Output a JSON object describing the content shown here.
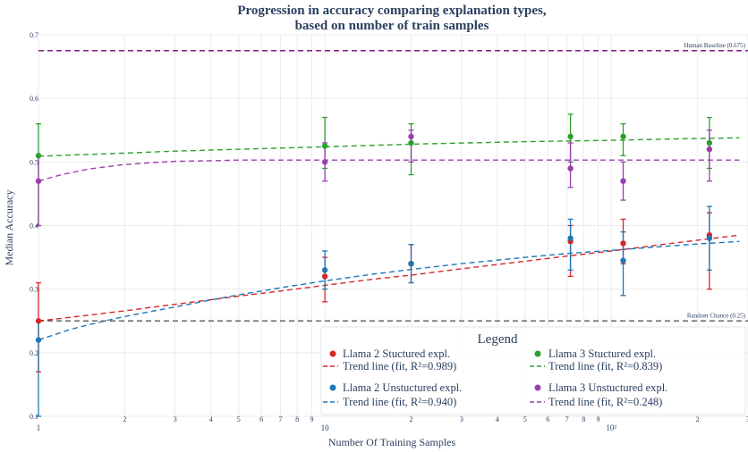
{
  "chart_data": {
    "type": "scatter",
    "title_line1": "Progression in accuracy comparing explanation types,",
    "title_line2": "based on number of train samples",
    "xlabel": "Number Of Training Samples",
    "ylabel": "Median Accuracy",
    "x_scale": "log",
    "xlim": [
      1,
      300
    ],
    "ylim": [
      0.1,
      0.7
    ],
    "x_major_ticks": [
      {
        "value": 1,
        "label": "1"
      },
      {
        "value": 10,
        "label": "10"
      },
      {
        "value": 100,
        "label": "10²"
      }
    ],
    "x_minor_ticks": [
      {
        "value": 2,
        "label": "2"
      },
      {
        "value": 3,
        "label": "3"
      },
      {
        "value": 4,
        "label": "4"
      },
      {
        "value": 5,
        "label": "5"
      },
      {
        "value": 6,
        "label": "6"
      },
      {
        "value": 7,
        "label": "7"
      },
      {
        "value": 8,
        "label": "8"
      },
      {
        "value": 9,
        "label": "9"
      },
      {
        "value": 20,
        "label": "2"
      },
      {
        "value": 30,
        "label": "3"
      },
      {
        "value": 40,
        "label": "4"
      },
      {
        "value": 50,
        "label": "5"
      },
      {
        "value": 60,
        "label": "6"
      },
      {
        "value": 70,
        "label": "7"
      },
      {
        "value": 80,
        "label": "8"
      },
      {
        "value": 90,
        "label": "9"
      },
      {
        "value": 200,
        "label": "2"
      },
      {
        "value": 300,
        "label": "3"
      }
    ],
    "y_ticks": [
      {
        "value": 0.1,
        "label": "0.1"
      },
      {
        "value": 0.2,
        "label": "0.2"
      },
      {
        "value": 0.3,
        "label": "0.3"
      },
      {
        "value": 0.4,
        "label": "0.4"
      },
      {
        "value": 0.5,
        "label": "0.5"
      },
      {
        "value": 0.6,
        "label": "0.6"
      },
      {
        "value": 0.7,
        "label": "0.7"
      }
    ],
    "grid": true,
    "reference_lines": [
      {
        "label": "Human Baseline (0.675)",
        "y": 0.675,
        "color": "#7e1f7e"
      },
      {
        "label": "Random Chance (0.25)",
        "y": 0.25,
        "color": "#666666"
      }
    ],
    "series": [
      {
        "name": "Llama 2 Stuctured expl.",
        "trend_name": "Trend line (fit, R²=0.989)",
        "color": "#d62728",
        "x": [
          1,
          10,
          20,
          72,
          110,
          220
        ],
        "y": [
          0.25,
          0.32,
          0.34,
          0.375,
          0.372,
          0.385
        ],
        "err_low": [
          0.17,
          0.28,
          0.31,
          0.32,
          0.34,
          0.3
        ],
        "err_high": [
          0.31,
          0.35,
          0.37,
          0.4,
          0.41,
          0.42
        ],
        "trend_x": [
          1,
          1.5,
          2,
          3,
          5,
          7,
          10,
          15,
          20,
          30,
          50,
          70,
          100,
          150,
          200,
          280
        ],
        "trend_y": [
          0.25,
          0.259,
          0.266,
          0.276,
          0.289,
          0.297,
          0.306,
          0.316,
          0.322,
          0.332,
          0.344,
          0.352,
          0.36,
          0.37,
          0.377,
          0.385
        ]
      },
      {
        "name": "Llama 2 Unstuctured expl.",
        "trend_name": "Trend line (fit, R²=0.940)",
        "color": "#1f77b4",
        "x": [
          1,
          10,
          20,
          72,
          110,
          220
        ],
        "y": [
          0.22,
          0.33,
          0.34,
          0.38,
          0.345,
          0.38
        ],
        "err_low": [
          0.1,
          0.3,
          0.31,
          0.33,
          0.29,
          0.33
        ],
        "err_high": [
          0.25,
          0.36,
          0.37,
          0.41,
          0.39,
          0.43
        ],
        "trend_x": [
          1,
          1.3,
          1.7,
          2,
          3,
          4,
          5,
          7,
          10,
          15,
          20,
          30,
          50,
          70,
          100,
          150,
          200,
          280
        ],
        "trend_y": [
          0.22,
          0.237,
          0.25,
          0.257,
          0.272,
          0.283,
          0.291,
          0.302,
          0.313,
          0.324,
          0.331,
          0.34,
          0.35,
          0.356,
          0.361,
          0.367,
          0.371,
          0.375
        ]
      },
      {
        "name": "Llama 3 Stuctured expl.",
        "trend_name": "Trend line (fit, R²=0.839)",
        "color": "#2ca02c",
        "x": [
          1,
          10,
          20,
          72,
          110,
          220
        ],
        "y": [
          0.51,
          0.525,
          0.53,
          0.54,
          0.54,
          0.53
        ],
        "err_low": [
          0.4,
          0.49,
          0.48,
          0.5,
          0.51,
          0.49
        ],
        "err_high": [
          0.56,
          0.57,
          0.56,
          0.575,
          0.56,
          0.57
        ],
        "trend_x": [
          1,
          2,
          3,
          5,
          10,
          20,
          50,
          100,
          200,
          280
        ],
        "trend_y": [
          0.509,
          0.514,
          0.517,
          0.52,
          0.524,
          0.528,
          0.532,
          0.534,
          0.537,
          0.538
        ]
      },
      {
        "name": "Llama 3 Unstuctured expl.",
        "trend_name": "Trend line (fit, R²=0.248)",
        "color": "#9b3fad",
        "x": [
          1,
          10,
          20,
          72,
          110,
          220
        ],
        "y": [
          0.47,
          0.5,
          0.54,
          0.49,
          0.47,
          0.52
        ],
        "err_low": [
          0.4,
          0.47,
          0.5,
          0.46,
          0.44,
          0.47
        ],
        "err_high": [
          0.51,
          0.53,
          0.55,
          0.53,
          0.5,
          0.55
        ],
        "trend_x": [
          1,
          1.2,
          1.5,
          2,
          2.5,
          3,
          4,
          5,
          7,
          10,
          20,
          50,
          100,
          280
        ],
        "trend_y": [
          0.47,
          0.48,
          0.489,
          0.496,
          0.499,
          0.501,
          0.502,
          0.503,
          0.503,
          0.503,
          0.503,
          0.503,
          0.503,
          0.503
        ]
      }
    ],
    "legend": {
      "title": "Legend",
      "placement": "bottom-right"
    }
  }
}
